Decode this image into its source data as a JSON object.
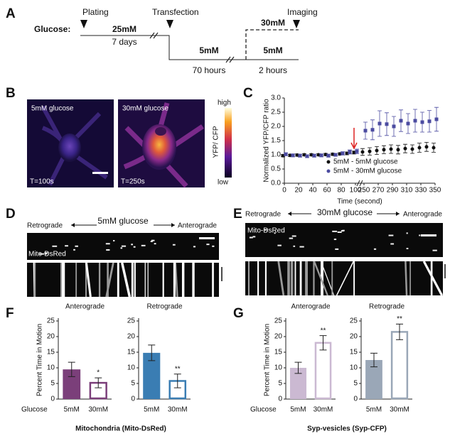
{
  "panel_labels": [
    "A",
    "B",
    "C",
    "D",
    "E",
    "F",
    "G"
  ],
  "timeline": {
    "label": "Glucose:",
    "events": [
      "Plating",
      "Transfection",
      "Imaging"
    ],
    "concentrations": [
      "25mM",
      "5mM",
      "30mM",
      "5mM"
    ],
    "durations": [
      "7 days",
      "70 hours",
      "2 hours"
    ]
  },
  "images": {
    "labels": [
      "5mM glucose",
      "30mM glucose"
    ],
    "times": [
      "T=100s",
      "T=250s"
    ],
    "colorbar": {
      "title": "YFP/ CFP",
      "high": "high",
      "low": "low"
    }
  },
  "kymographs": [
    {
      "left": "Retrograde",
      "center": "5mM glucose",
      "right": "Anterograde",
      "label": "Mito-DsRed"
    },
    {
      "left": "Retrograde",
      "center": "30mM glucose",
      "right": "Anterograde",
      "label": "Mito-DsRed"
    }
  ],
  "captions": [
    "Mitochondria (Mito-DsRed)",
    "Syp-vesicles (Syp-CFP)"
  ],
  "x_group_label": [
    "Glucose",
    "Glucose"
  ],
  "chart_data": [
    {
      "type": "scatter",
      "xlabel": "Time (second)",
      "ylabel": "Normalized YFP/CFP ratio",
      "x": [
        0,
        10,
        20,
        30,
        40,
        50,
        60,
        70,
        80,
        90,
        100,
        250,
        260,
        270,
        280,
        290,
        300,
        310,
        320,
        330,
        340,
        350
      ],
      "x_break": [
        100,
        250
      ],
      "xlim": [
        0,
        350
      ],
      "xticks": [
        0,
        20,
        40,
        60,
        80,
        100,
        250,
        270,
        290,
        310,
        330,
        350
      ],
      "ylim": [
        0,
        3
      ],
      "yticks": [
        {
          "value": 0,
          "label": "0.0"
        },
        {
          "value": 0.5,
          "label": "0.5"
        },
        {
          "value": 1,
          "label": "1.0"
        },
        {
          "value": 1.5,
          "label": "1.5"
        },
        {
          "value": 2,
          "label": "2.0"
        },
        {
          "value": 2.5,
          "label": "2.5"
        },
        {
          "value": 3,
          "label": "3.0"
        }
      ],
      "legend": "lower right",
      "series": [
        {
          "name": "5mM - 5mM glucose",
          "color": "#111111",
          "values": [
            0.97,
            0.98,
            0.99,
            1.0,
            1.0,
            1.0,
            1.01,
            1.02,
            1.03,
            1.05,
            1.08,
            1.1,
            1.12,
            1.15,
            1.18,
            1.2,
            1.18,
            1.22,
            1.2,
            1.25,
            1.28,
            1.25
          ],
          "errors": [
            0.04,
            0.04,
            0.04,
            0.04,
            0.04,
            0.04,
            0.04,
            0.04,
            0.04,
            0.05,
            0.05,
            0.12,
            0.13,
            0.14,
            0.14,
            0.15,
            0.15,
            0.15,
            0.15,
            0.16,
            0.16,
            0.16
          ]
        },
        {
          "name": "5mM - 30mM glucose",
          "color": "#4b4ba0",
          "values": [
            1.02,
            0.98,
            0.97,
            0.95,
            0.97,
            0.98,
            0.97,
            1.0,
            1.05,
            1.1,
            1.12,
            1.85,
            1.88,
            2.1,
            2.08,
            2.0,
            2.2,
            2.1,
            2.2,
            2.15,
            2.18,
            2.25
          ],
          "errors": [
            0.05,
            0.05,
            0.05,
            0.05,
            0.05,
            0.05,
            0.05,
            0.05,
            0.06,
            0.07,
            0.08,
            0.3,
            0.35,
            0.45,
            0.4,
            0.35,
            0.38,
            0.35,
            0.4,
            0.35,
            0.38,
            0.42
          ]
        }
      ]
    },
    {
      "type": "bar",
      "title": "Anterograde",
      "ylabel": "Percent Time in Motion",
      "categories": [
        "5mM",
        "30mM"
      ],
      "values": [
        9.5,
        5.2
      ],
      "errors": [
        2.3,
        1.6
      ],
      "significance": [
        null,
        "*"
      ],
      "colors": [
        "#7b3f7a",
        "#7b3f7a"
      ],
      "hollow": [
        false,
        true
      ],
      "ylim": [
        0,
        25
      ],
      "yticks": [
        0,
        5,
        10,
        15,
        20,
        25
      ]
    },
    {
      "type": "bar",
      "title": "Retrograde",
      "categories": [
        "5mM",
        "30mM"
      ],
      "values": [
        14.8,
        5.8
      ],
      "errors": [
        2.5,
        2.2
      ],
      "significance": [
        null,
        "**"
      ],
      "colors": [
        "#3a7db3",
        "#3a7db3"
      ],
      "hollow": [
        false,
        true
      ],
      "ylim": [
        0,
        25
      ],
      "yticks": [
        0,
        5,
        10,
        15,
        20,
        25
      ]
    },
    {
      "type": "bar",
      "title": "Anterograde",
      "ylabel": "Percent Time in Motion",
      "categories": [
        "5mM",
        "30mM"
      ],
      "values": [
        10,
        18
      ],
      "errors": [
        1.8,
        2.3
      ],
      "significance": [
        null,
        "**"
      ],
      "colors": [
        "#cbb9d2",
        "#cbb9d2"
      ],
      "hollow": [
        false,
        true
      ],
      "ylim": [
        0,
        25
      ],
      "yticks": [
        0,
        5,
        10,
        15,
        20,
        25
      ]
    },
    {
      "type": "bar",
      "title": "Retrograde",
      "categories": [
        "5mM",
        "30mM"
      ],
      "values": [
        12.5,
        21.5
      ],
      "errors": [
        2.2,
        2.5
      ],
      "significance": [
        null,
        "**"
      ],
      "colors": [
        "#9aa7b7",
        "#9aa7b7"
      ],
      "hollow": [
        false,
        true
      ],
      "ylim": [
        0,
        25
      ],
      "yticks": [
        0,
        5,
        10,
        15,
        20,
        25
      ]
    }
  ]
}
